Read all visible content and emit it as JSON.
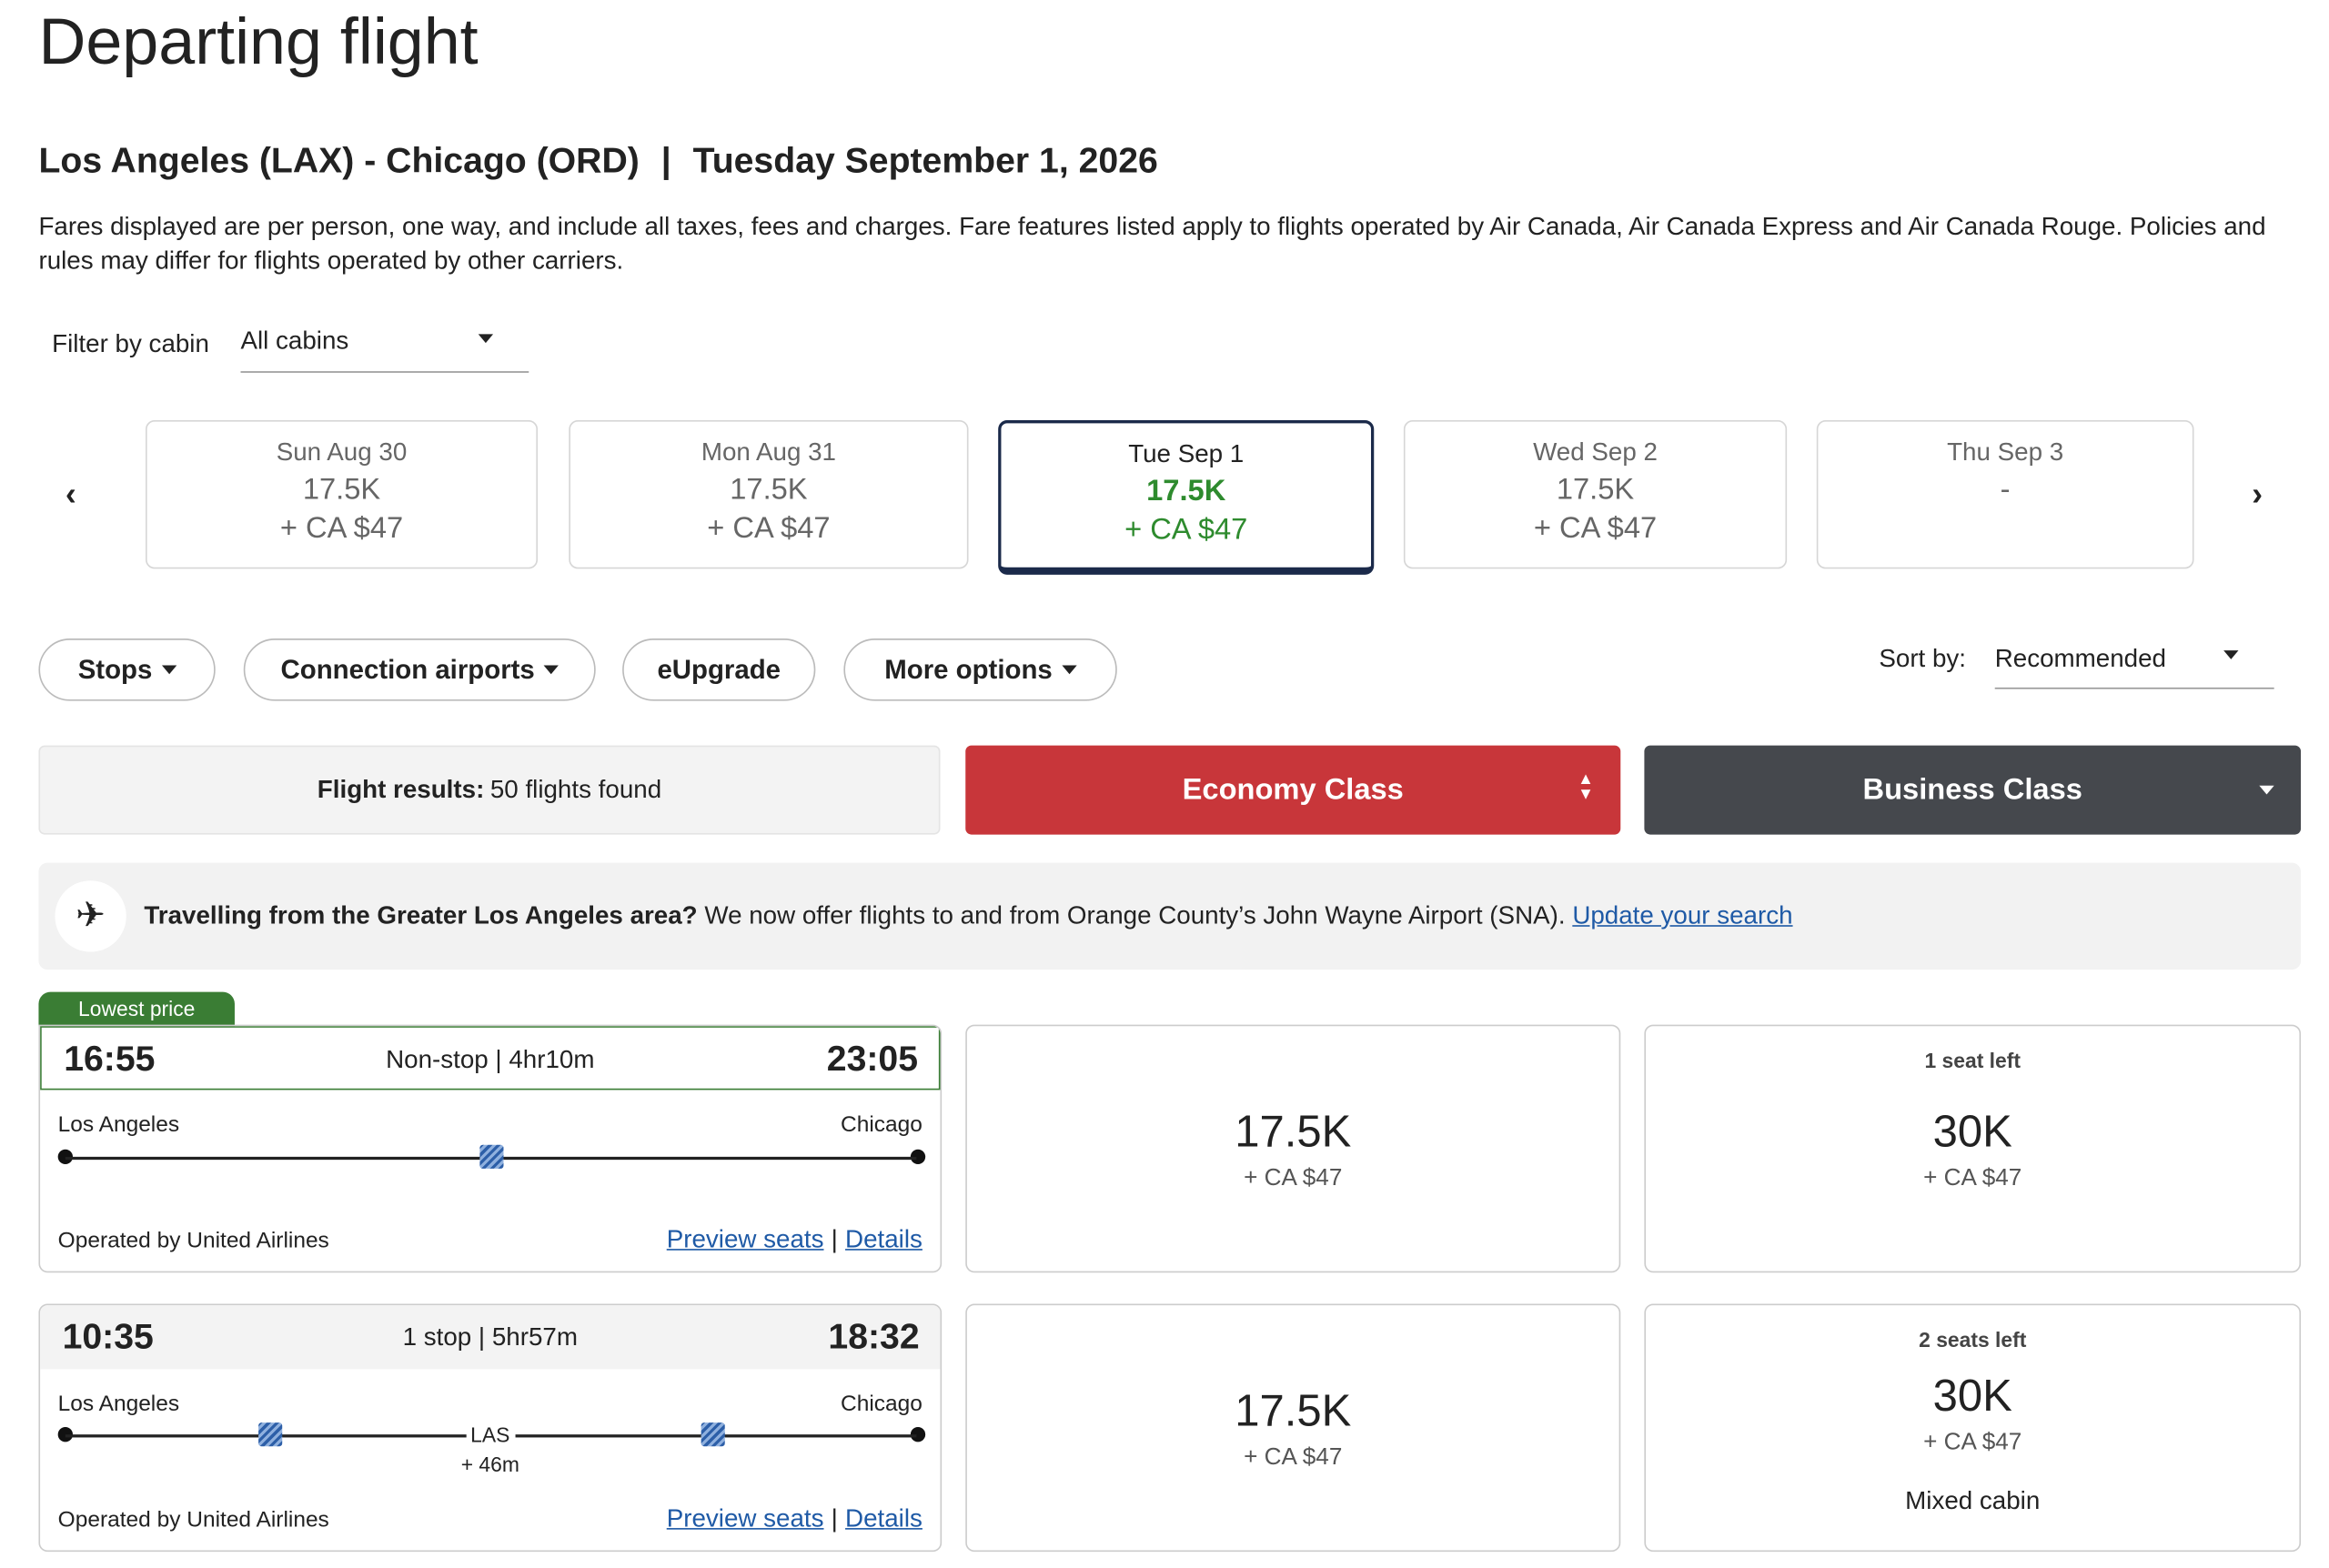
{
  "header": {
    "title": "Departing flight",
    "route": "Los Angeles (LAX) - Chicago (ORD)",
    "separator": "|",
    "date": "Tuesday September 1, 2026",
    "disclaimer": "Fares displayed are per person, one way, and include all taxes, fees and charges. Fare features listed apply to flights operated by Air Canada, Air Canada Express and Air Canada Rouge. Policies and rules may differ for flights operated by other carriers."
  },
  "filter": {
    "label": "Filter by cabin",
    "value": "All cabins"
  },
  "dates": [
    {
      "day": "Sun Aug 30",
      "points": "17.5K",
      "cash": "+ CA $47"
    },
    {
      "day": "Mon Aug 31",
      "points": "17.5K",
      "cash": "+ CA $47"
    },
    {
      "day": "Tue Sep 1",
      "points": "17.5K",
      "cash": "+ CA $47"
    },
    {
      "day": "Wed Sep 2",
      "points": "17.5K",
      "cash": "+ CA $47"
    },
    {
      "day": "Thu Sep 3",
      "points": "-"
    }
  ],
  "chips": [
    "Stops",
    "Connection airports",
    "eUpgrade",
    "More options"
  ],
  "sort": {
    "label": "Sort by:",
    "value": "Recommended"
  },
  "results": {
    "label": "Flight results:",
    "count": "50 flights found"
  },
  "cabins": [
    "Economy Class",
    "Business Class"
  ],
  "notice": {
    "bold": "Travelling from the Greater Los Angeles area?",
    "text": "We now offer flights to and from Orange County’s John Wayne Airport (SNA).",
    "link": "Update your search"
  },
  "flights": [
    {
      "badge": "Lowest price",
      "depart": "16:55",
      "summary": "Non-stop | 4hr10m",
      "arrive": "23:05",
      "origin": "Los Angeles",
      "destination": "Chicago",
      "operator": "Operated by United Airlines",
      "preview": "Preview seats",
      "separator": "|",
      "details": "Details",
      "economy": {
        "points": "17.5K",
        "cash": "+ CA $47"
      },
      "business": {
        "note": "1 seat left",
        "points": "30K",
        "cash": "+ CA $47"
      }
    },
    {
      "depart": "10:35",
      "summary": "1 stop | 5hr57m",
      "arrive": "18:32",
      "origin": "Los Angeles",
      "destination": "Chicago",
      "stop": "LAS",
      "layover": "+ 46m",
      "operator": "Operated by United Airlines",
      "preview": "Preview seats",
      "separator": "|",
      "details": "Details",
      "economy": {
        "points": "17.5K",
        "cash": "+ CA $47"
      },
      "business": {
        "note": "2 seats left",
        "points": "30K",
        "cash": "+ CA $47",
        "extra": "Mixed cabin"
      }
    }
  ]
}
